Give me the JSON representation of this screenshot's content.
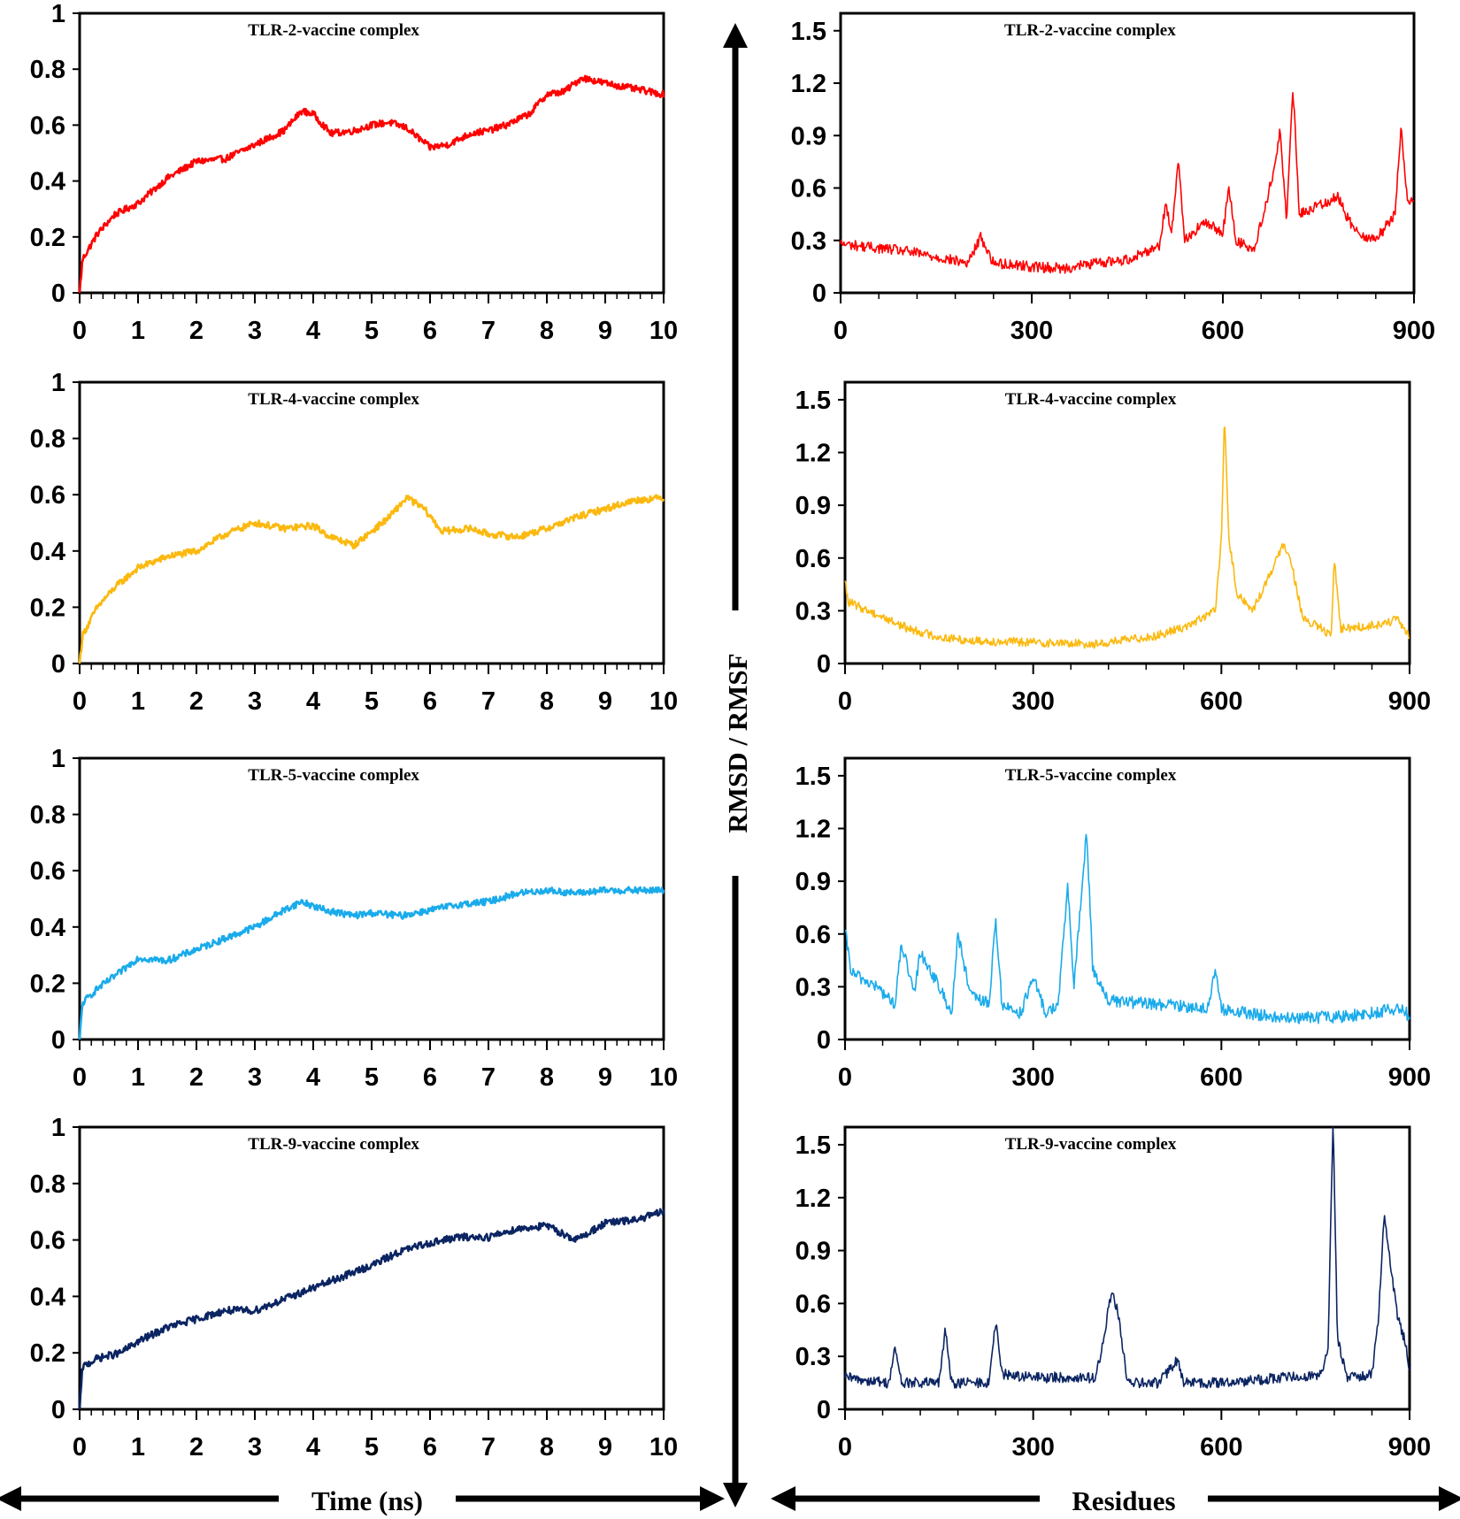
{
  "figure": {
    "x_caption_left": "Time (ns)",
    "x_caption_right": "Residues",
    "y_caption": "RMSD / RMSF"
  },
  "chart_data": [
    {
      "id": "rmsd-tlr2",
      "type": "line",
      "title": "TLR-2-vaccine complex",
      "color": "#ff0000",
      "xlabel": "Time (ns)",
      "ylabel": "RMSD",
      "xlim": [
        0,
        10
      ],
      "ylim": [
        0,
        1
      ],
      "xticks": [
        "0",
        "1",
        "2",
        "3",
        "4",
        "5",
        "6",
        "7",
        "8",
        "9",
        "10"
      ],
      "yticks": [
        "0",
        "0.2",
        "0.4",
        "0.6",
        "0.8",
        "1"
      ],
      "x": [
        0,
        0.05,
        0.3,
        0.6,
        1.0,
        1.5,
        2.0,
        2.5,
        3.0,
        3.5,
        3.8,
        4.0,
        4.3,
        4.7,
        5.0,
        5.3,
        5.6,
        6.0,
        6.3,
        6.7,
        7.0,
        7.3,
        7.7,
        8.0,
        8.3,
        8.6,
        9.0,
        9.5,
        10.0
      ],
      "values": [
        0,
        0.12,
        0.21,
        0.28,
        0.32,
        0.41,
        0.47,
        0.48,
        0.53,
        0.58,
        0.65,
        0.64,
        0.57,
        0.58,
        0.6,
        0.61,
        0.59,
        0.52,
        0.53,
        0.57,
        0.58,
        0.6,
        0.64,
        0.71,
        0.72,
        0.77,
        0.75,
        0.73,
        0.71
      ],
      "noise": 0.012
    },
    {
      "id": "rmsd-tlr4",
      "type": "line",
      "title": "TLR-4-vaccine complex",
      "color": "#fbb90f",
      "xlabel": "Time (ns)",
      "ylabel": "RMSD",
      "xlim": [
        0,
        10
      ],
      "ylim": [
        0,
        1
      ],
      "xticks": [
        "0",
        "1",
        "2",
        "3",
        "4",
        "5",
        "6",
        "7",
        "8",
        "9",
        "10"
      ],
      "yticks": [
        "0",
        "0.2",
        "0.4",
        "0.6",
        "0.8",
        "1"
      ],
      "x": [
        0,
        0.05,
        0.3,
        0.6,
        1.0,
        1.5,
        2.0,
        2.5,
        3.0,
        3.5,
        4.0,
        4.3,
        4.7,
        5.0,
        5.3,
        5.6,
        5.9,
        6.2,
        6.7,
        7.0,
        7.5,
        8.0,
        8.5,
        9.0,
        9.5,
        10.0
      ],
      "values": [
        0,
        0.1,
        0.2,
        0.27,
        0.34,
        0.38,
        0.4,
        0.46,
        0.5,
        0.48,
        0.49,
        0.45,
        0.42,
        0.47,
        0.52,
        0.59,
        0.55,
        0.47,
        0.48,
        0.46,
        0.45,
        0.48,
        0.52,
        0.55,
        0.58,
        0.59
      ],
      "noise": 0.012
    },
    {
      "id": "rmsd-tlr5",
      "type": "line",
      "title": "TLR-5-vaccine complex",
      "color": "#1aabeb",
      "xlabel": "Time (ns)",
      "ylabel": "RMSD",
      "xlim": [
        0,
        10
      ],
      "ylim": [
        0,
        1
      ],
      "xticks": [
        "0",
        "1",
        "2",
        "3",
        "4",
        "5",
        "6",
        "7",
        "8",
        "9",
        "10"
      ],
      "yticks": [
        "0",
        "0.2",
        "0.4",
        "0.6",
        "0.8",
        "1"
      ],
      "x": [
        0,
        0.05,
        0.3,
        0.7,
        1.0,
        1.5,
        2.0,
        2.5,
        3.0,
        3.5,
        3.8,
        4.2,
        4.7,
        5.0,
        5.5,
        6.0,
        6.5,
        7.0,
        7.5,
        8.0,
        8.5,
        9.0,
        9.5,
        10.0
      ],
      "values": [
        0,
        0.13,
        0.18,
        0.24,
        0.29,
        0.28,
        0.32,
        0.36,
        0.4,
        0.46,
        0.49,
        0.46,
        0.44,
        0.45,
        0.44,
        0.46,
        0.48,
        0.49,
        0.52,
        0.53,
        0.52,
        0.53,
        0.53,
        0.53
      ],
      "noise": 0.012
    },
    {
      "id": "rmsd-tlr9",
      "type": "line",
      "title": "TLR-9-vaccine complex",
      "color": "#0b2462",
      "xlabel": "Time (ns)",
      "ylabel": "RMSD",
      "xlim": [
        0,
        10
      ],
      "ylim": [
        0,
        1
      ],
      "xticks": [
        "0",
        "1",
        "2",
        "3",
        "4",
        "5",
        "6",
        "7",
        "8",
        "9",
        "10"
      ],
      "yticks": [
        "0",
        "0.2",
        "0.4",
        "0.6",
        "0.8",
        "1"
      ],
      "x": [
        0,
        0.05,
        0.3,
        0.7,
        1.0,
        1.5,
        2.0,
        2.5,
        3.0,
        3.5,
        4.0,
        4.5,
        5.0,
        5.5,
        6.0,
        6.5,
        7.0,
        7.5,
        8.0,
        8.5,
        9.0,
        9.5,
        10.0
      ],
      "values": [
        0,
        0.15,
        0.18,
        0.2,
        0.24,
        0.29,
        0.32,
        0.35,
        0.35,
        0.39,
        0.43,
        0.47,
        0.51,
        0.56,
        0.59,
        0.61,
        0.61,
        0.64,
        0.65,
        0.6,
        0.66,
        0.67,
        0.7
      ],
      "noise": 0.013
    },
    {
      "id": "rmsf-tlr2",
      "type": "line",
      "title": "TLR-2-vaccine complex",
      "color": "#ff0000",
      "xlabel": "Residues",
      "ylabel": "RMSF",
      "xlim": [
        0,
        900
      ],
      "ylim": [
        0,
        1.6
      ],
      "xticks": [
        "0",
        "300",
        "600",
        "900"
      ],
      "yticks": [
        "0",
        "0.3",
        "0.6",
        "0.9",
        "1.2",
        "1.5"
      ],
      "x": [
        0,
        100,
        200,
        220,
        240,
        280,
        300,
        350,
        400,
        450,
        500,
        510,
        520,
        530,
        540,
        570,
        600,
        610,
        620,
        650,
        680,
        690,
        700,
        710,
        720,
        750,
        780,
        800,
        830,
        850,
        870,
        880,
        890,
        900
      ],
      "values": [
        0.28,
        0.24,
        0.17,
        0.32,
        0.17,
        0.16,
        0.15,
        0.14,
        0.17,
        0.19,
        0.27,
        0.5,
        0.35,
        0.78,
        0.3,
        0.4,
        0.35,
        0.6,
        0.3,
        0.25,
        0.7,
        0.93,
        0.4,
        1.18,
        0.45,
        0.5,
        0.55,
        0.4,
        0.3,
        0.35,
        0.45,
        0.95,
        0.5,
        0.55
      ],
      "noise": 0.03
    },
    {
      "id": "rmsf-tlr4",
      "type": "line",
      "title": "TLR-4-vaccine complex",
      "color": "#fbb90f",
      "xlabel": "Residues",
      "ylabel": "RMSF",
      "xlim": [
        0,
        900
      ],
      "ylim": [
        0,
        1.6
      ],
      "xticks": [
        "0",
        "300",
        "600",
        "900"
      ],
      "yticks": [
        "0",
        "0.3",
        "0.6",
        "0.9",
        "1.2",
        "1.5"
      ],
      "x": [
        0,
        5,
        50,
        100,
        150,
        200,
        300,
        400,
        500,
        550,
        590,
        600,
        605,
        612,
        625,
        650,
        700,
        710,
        730,
        760,
        775,
        780,
        790,
        800,
        850,
        880,
        900
      ],
      "values": [
        0.47,
        0.35,
        0.28,
        0.2,
        0.15,
        0.13,
        0.12,
        0.11,
        0.16,
        0.22,
        0.3,
        0.7,
        1.42,
        0.7,
        0.4,
        0.3,
        0.68,
        0.6,
        0.25,
        0.2,
        0.15,
        0.6,
        0.2,
        0.2,
        0.22,
        0.25,
        0.15
      ],
      "noise": 0.025
    },
    {
      "id": "rmsf-tlr5",
      "type": "line",
      "title": "TLR-5-vaccine complex",
      "color": "#1aabeb",
      "xlabel": "Residues",
      "ylabel": "RMSF",
      "xlim": [
        0,
        900
      ],
      "ylim": [
        0,
        1.6
      ],
      "xticks": [
        "0",
        "300",
        "600",
        "900"
      ],
      "yticks": [
        "0",
        "0.3",
        "0.6",
        "0.9",
        "1.2",
        "1.5"
      ],
      "x": [
        0,
        10,
        50,
        80,
        90,
        110,
        120,
        150,
        170,
        180,
        200,
        230,
        240,
        250,
        280,
        300,
        320,
        340,
        355,
        365,
        380,
        385,
        395,
        420,
        500,
        580,
        590,
        600,
        700,
        800,
        890,
        900
      ],
      "values": [
        0.62,
        0.38,
        0.3,
        0.2,
        0.55,
        0.25,
        0.5,
        0.3,
        0.15,
        0.6,
        0.25,
        0.2,
        0.7,
        0.2,
        0.15,
        0.35,
        0.15,
        0.2,
        0.88,
        0.3,
        0.95,
        1.2,
        0.4,
        0.22,
        0.2,
        0.18,
        0.4,
        0.17,
        0.12,
        0.13,
        0.18,
        0.12
      ],
      "noise": 0.035
    },
    {
      "id": "rmsf-tlr9",
      "type": "line",
      "title": "TLR-9-vaccine complex",
      "color": "#0b2462",
      "xlabel": "Residues",
      "ylabel": "RMSF",
      "xlim": [
        0,
        900
      ],
      "ylim": [
        0,
        1.6
      ],
      "xticks": [
        "0",
        "300",
        "600",
        "900"
      ],
      "yticks": [
        "0",
        "0.3",
        "0.6",
        "0.9",
        "1.2",
        "1.5"
      ],
      "x": [
        0,
        70,
        80,
        90,
        150,
        160,
        170,
        230,
        240,
        250,
        300,
        400,
        415,
        425,
        435,
        450,
        500,
        530,
        540,
        600,
        700,
        760,
        770,
        778,
        785,
        800,
        840,
        850,
        860,
        870,
        880,
        895,
        900
      ],
      "values": [
        0.18,
        0.15,
        0.35,
        0.15,
        0.15,
        0.45,
        0.15,
        0.15,
        0.5,
        0.2,
        0.18,
        0.18,
        0.45,
        0.68,
        0.55,
        0.15,
        0.15,
        0.28,
        0.15,
        0.15,
        0.18,
        0.2,
        0.35,
        1.65,
        0.4,
        0.18,
        0.2,
        0.5,
        1.12,
        0.8,
        0.55,
        0.35,
        0.2
      ],
      "noise": 0.03
    }
  ]
}
